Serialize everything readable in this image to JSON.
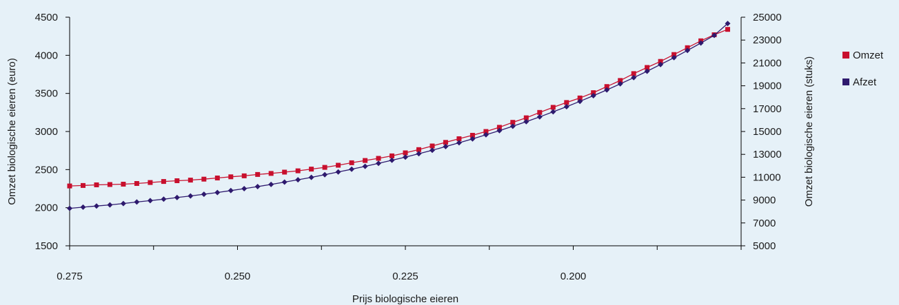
{
  "chart_data": {
    "type": "line",
    "title": "",
    "xlabel": "Prijs biologische eieren",
    "ylabel_left": "Omzet biologische eieren (euro)",
    "ylabel_right": "Omzet biologische eieren (stuks)",
    "x_ticks": [
      "0.275",
      "0.250",
      "0.225",
      "0.200"
    ],
    "x_tick_values": [
      0.275,
      0.25,
      0.225,
      0.2
    ],
    "xlim": [
      0.275,
      0.175
    ],
    "ylim_left": [
      1500,
      4500
    ],
    "yticks_left": [
      "1500",
      "2000",
      "2500",
      "3000",
      "3500",
      "4000",
      "4500"
    ],
    "ylim_right": [
      5000,
      25000
    ],
    "yticks_right": [
      "5000",
      "7000",
      "9000",
      "11000",
      "13000",
      "15000",
      "17000",
      "19000",
      "21000",
      "23000",
      "25000"
    ],
    "grid": false,
    "legend": "right",
    "series": [
      {
        "name": "Omzet",
        "axis": "left",
        "color": "#c8102e",
        "marker": "square",
        "x": [
          0.275,
          0.273,
          0.271,
          0.269,
          0.267,
          0.265,
          0.263,
          0.261,
          0.259,
          0.257,
          0.255,
          0.253,
          0.251,
          0.249,
          0.247,
          0.245,
          0.243,
          0.241,
          0.239,
          0.237,
          0.235,
          0.233,
          0.231,
          0.229,
          0.227,
          0.225,
          0.223,
          0.221,
          0.219,
          0.217,
          0.215,
          0.213,
          0.211,
          0.209,
          0.207,
          0.205,
          0.203,
          0.201,
          0.199,
          0.197,
          0.195,
          0.193,
          0.191,
          0.189,
          0.187,
          0.185,
          0.183,
          0.181,
          0.179,
          0.177
        ],
        "values": [
          2285,
          2292,
          2300,
          2304,
          2309,
          2318,
          2330,
          2344,
          2354,
          2362,
          2375,
          2390,
          2405,
          2418,
          2436,
          2450,
          2467,
          2484,
          2507,
          2529,
          2557,
          2590,
          2620,
          2648,
          2680,
          2720,
          2762,
          2810,
          2857,
          2905,
          2950,
          3000,
          3055,
          3120,
          3180,
          3250,
          3317,
          3380,
          3440,
          3510,
          3590,
          3670,
          3760,
          3840,
          3920,
          4010,
          4100,
          4190,
          4270,
          4340
        ]
      },
      {
        "name": "Afzet",
        "axis": "right",
        "color": "#2e1a6e",
        "marker": "diamond",
        "x": [
          0.275,
          0.273,
          0.271,
          0.269,
          0.267,
          0.265,
          0.263,
          0.261,
          0.259,
          0.257,
          0.255,
          0.253,
          0.251,
          0.249,
          0.247,
          0.245,
          0.243,
          0.241,
          0.239,
          0.237,
          0.235,
          0.233,
          0.231,
          0.229,
          0.227,
          0.225,
          0.223,
          0.221,
          0.219,
          0.217,
          0.215,
          0.213,
          0.211,
          0.209,
          0.207,
          0.205,
          0.203,
          0.201,
          0.199,
          0.197,
          0.195,
          0.193,
          0.191,
          0.189,
          0.187,
          0.185,
          0.183,
          0.181,
          0.179,
          0.177
        ],
        "values": [
          8280,
          8380,
          8480,
          8580,
          8700,
          8830,
          8950,
          9080,
          9220,
          9360,
          9510,
          9660,
          9830,
          10000,
          10180,
          10370,
          10570,
          10780,
          10990,
          11220,
          11460,
          11700,
          11950,
          12210,
          12480,
          12760,
          13060,
          13360,
          13680,
          14010,
          14350,
          14710,
          15080,
          15460,
          15860,
          16280,
          16720,
          17170,
          17640,
          18130,
          18640,
          19170,
          19710,
          20270,
          20860,
          21460,
          22090,
          22740,
          23410,
          24450
        ]
      }
    ]
  }
}
